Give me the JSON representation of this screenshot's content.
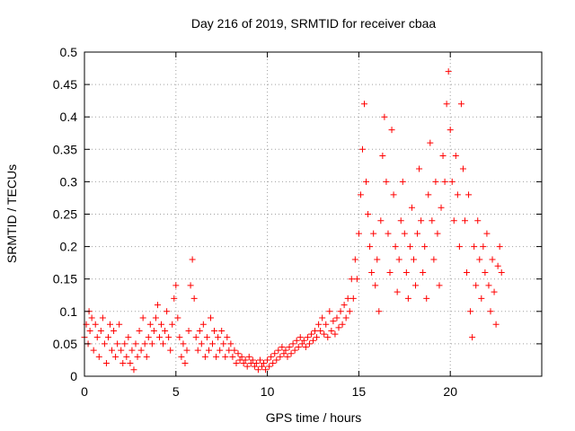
{
  "chart_data": {
    "type": "scatter",
    "title": "Day 216 of 2019, SRMTID for receiver cbaa",
    "xlabel": "GPS time / hours",
    "ylabel": "SRMTID / TECUs",
    "xlim": [
      0,
      25
    ],
    "ylim": [
      0,
      0.5
    ],
    "x_ticks": [
      0,
      5,
      10,
      15,
      20
    ],
    "x_tick_labels": [
      "0",
      "5",
      "10",
      "15",
      "20"
    ],
    "y_ticks": [
      0,
      0.05,
      0.1,
      0.15,
      0.2,
      0.25,
      0.3,
      0.35,
      0.4,
      0.45,
      0.5
    ],
    "y_tick_labels": [
      "0",
      "0.05",
      "0.1",
      "0.15",
      "0.2",
      "0.25",
      "0.3",
      "0.35",
      "0.4",
      "0.45",
      "0.5"
    ],
    "grid": true,
    "marker": "+",
    "marker_color": "#ff0000",
    "series": [
      {
        "name": "SRMTID",
        "points": [
          [
            0.0,
            0.06
          ],
          [
            0.1,
            0.08
          ],
          [
            0.2,
            0.05
          ],
          [
            0.25,
            0.1
          ],
          [
            0.3,
            0.07
          ],
          [
            0.4,
            0.09
          ],
          [
            0.5,
            0.04
          ],
          [
            0.6,
            0.08
          ],
          [
            0.7,
            0.06
          ],
          [
            0.8,
            0.03
          ],
          [
            0.9,
            0.07
          ],
          [
            1.0,
            0.09
          ],
          [
            1.1,
            0.05
          ],
          [
            1.2,
            0.02
          ],
          [
            1.3,
            0.06
          ],
          [
            1.4,
            0.08
          ],
          [
            1.5,
            0.04
          ],
          [
            1.6,
            0.07
          ],
          [
            1.7,
            0.03
          ],
          [
            1.8,
            0.05
          ],
          [
            1.9,
            0.08
          ],
          [
            2.0,
            0.04
          ],
          [
            2.1,
            0.02
          ],
          [
            2.2,
            0.05
          ],
          [
            2.3,
            0.03
          ],
          [
            2.4,
            0.06
          ],
          [
            2.5,
            0.02
          ],
          [
            2.6,
            0.04
          ],
          [
            2.7,
            0.01
          ],
          [
            2.8,
            0.05
          ],
          [
            2.9,
            0.03
          ],
          [
            3.0,
            0.07
          ],
          [
            3.1,
            0.04
          ],
          [
            3.2,
            0.09
          ],
          [
            3.3,
            0.05
          ],
          [
            3.4,
            0.03
          ],
          [
            3.5,
            0.06
          ],
          [
            3.6,
            0.08
          ],
          [
            3.7,
            0.05
          ],
          [
            3.8,
            0.07
          ],
          [
            3.9,
            0.09
          ],
          [
            4.0,
            0.11
          ],
          [
            4.1,
            0.06
          ],
          [
            4.2,
            0.08
          ],
          [
            4.3,
            0.05
          ],
          [
            4.4,
            0.07
          ],
          [
            4.5,
            0.1
          ],
          [
            4.6,
            0.06
          ],
          [
            4.7,
            0.04
          ],
          [
            4.8,
            0.08
          ],
          [
            4.9,
            0.12
          ],
          [
            5.0,
            0.14
          ],
          [
            5.1,
            0.09
          ],
          [
            5.2,
            0.06
          ],
          [
            5.3,
            0.03
          ],
          [
            5.4,
            0.05
          ],
          [
            5.5,
            0.02
          ],
          [
            5.6,
            0.04
          ],
          [
            5.7,
            0.07
          ],
          [
            5.8,
            0.14
          ],
          [
            5.9,
            0.18
          ],
          [
            6.0,
            0.12
          ],
          [
            6.1,
            0.06
          ],
          [
            6.2,
            0.04
          ],
          [
            6.3,
            0.07
          ],
          [
            6.4,
            0.05
          ],
          [
            6.5,
            0.08
          ],
          [
            6.6,
            0.03
          ],
          [
            6.7,
            0.06
          ],
          [
            6.8,
            0.04
          ],
          [
            6.9,
            0.09
          ],
          [
            7.0,
            0.05
          ],
          [
            7.1,
            0.07
          ],
          [
            7.2,
            0.03
          ],
          [
            7.3,
            0.06
          ],
          [
            7.4,
            0.04
          ],
          [
            7.5,
            0.07
          ],
          [
            7.6,
            0.05
          ],
          [
            7.7,
            0.03
          ],
          [
            7.8,
            0.06
          ],
          [
            7.9,
            0.04
          ],
          [
            8.0,
            0.05
          ],
          [
            8.1,
            0.03
          ],
          [
            8.2,
            0.04
          ],
          [
            8.3,
            0.02
          ],
          [
            8.4,
            0.035
          ],
          [
            8.5,
            0.025
          ],
          [
            8.6,
            0.03
          ],
          [
            8.7,
            0.02
          ],
          [
            8.8,
            0.025
          ],
          [
            8.9,
            0.015
          ],
          [
            9.0,
            0.03
          ],
          [
            9.1,
            0.02
          ],
          [
            9.2,
            0.025
          ],
          [
            9.3,
            0.015
          ],
          [
            9.4,
            0.02
          ],
          [
            9.5,
            0.01
          ],
          [
            9.6,
            0.025
          ],
          [
            9.7,
            0.015
          ],
          [
            9.8,
            0.02
          ],
          [
            9.9,
            0.01
          ],
          [
            10.0,
            0.025
          ],
          [
            10.1,
            0.015
          ],
          [
            10.2,
            0.03
          ],
          [
            10.3,
            0.02
          ],
          [
            10.4,
            0.035
          ],
          [
            10.5,
            0.025
          ],
          [
            10.6,
            0.04
          ],
          [
            10.7,
            0.03
          ],
          [
            10.8,
            0.045
          ],
          [
            10.9,
            0.035
          ],
          [
            11.0,
            0.04
          ],
          [
            11.1,
            0.03
          ],
          [
            11.2,
            0.045
          ],
          [
            11.3,
            0.035
          ],
          [
            11.4,
            0.05
          ],
          [
            11.5,
            0.04
          ],
          [
            11.6,
            0.055
          ],
          [
            11.7,
            0.045
          ],
          [
            11.8,
            0.06
          ],
          [
            11.9,
            0.05
          ],
          [
            12.0,
            0.055
          ],
          [
            12.1,
            0.045
          ],
          [
            12.2,
            0.06
          ],
          [
            12.3,
            0.05
          ],
          [
            12.4,
            0.065
          ],
          [
            12.5,
            0.055
          ],
          [
            12.6,
            0.07
          ],
          [
            12.7,
            0.06
          ],
          [
            12.8,
            0.08
          ],
          [
            12.9,
            0.07
          ],
          [
            13.0,
            0.09
          ],
          [
            13.1,
            0.065
          ],
          [
            13.2,
            0.08
          ],
          [
            13.3,
            0.06
          ],
          [
            13.4,
            0.1
          ],
          [
            13.5,
            0.07
          ],
          [
            13.6,
            0.085
          ],
          [
            13.7,
            0.065
          ],
          [
            13.8,
            0.09
          ],
          [
            13.9,
            0.075
          ],
          [
            14.0,
            0.1
          ],
          [
            14.1,
            0.08
          ],
          [
            14.2,
            0.11
          ],
          [
            14.3,
            0.09
          ],
          [
            14.4,
            0.12
          ],
          [
            14.5,
            0.1
          ],
          [
            14.6,
            0.15
          ],
          [
            14.7,
            0.12
          ],
          [
            14.8,
            0.18
          ],
          [
            14.9,
            0.15
          ],
          [
            15.0,
            0.22
          ],
          [
            15.1,
            0.28
          ],
          [
            15.2,
            0.35
          ],
          [
            15.3,
            0.42
          ],
          [
            15.4,
            0.3
          ],
          [
            15.5,
            0.25
          ],
          [
            15.6,
            0.2
          ],
          [
            15.7,
            0.16
          ],
          [
            15.8,
            0.22
          ],
          [
            15.9,
            0.14
          ],
          [
            16.0,
            0.18
          ],
          [
            16.1,
            0.1
          ],
          [
            16.2,
            0.24
          ],
          [
            16.3,
            0.34
          ],
          [
            16.4,
            0.4
          ],
          [
            16.5,
            0.3
          ],
          [
            16.6,
            0.22
          ],
          [
            16.7,
            0.16
          ],
          [
            16.8,
            0.38
          ],
          [
            16.9,
            0.28
          ],
          [
            17.0,
            0.2
          ],
          [
            17.1,
            0.13
          ],
          [
            17.2,
            0.18
          ],
          [
            17.3,
            0.24
          ],
          [
            17.4,
            0.3
          ],
          [
            17.5,
            0.22
          ],
          [
            17.6,
            0.16
          ],
          [
            17.7,
            0.12
          ],
          [
            17.8,
            0.2
          ],
          [
            17.9,
            0.26
          ],
          [
            18.0,
            0.18
          ],
          [
            18.1,
            0.14
          ],
          [
            18.2,
            0.22
          ],
          [
            18.3,
            0.32
          ],
          [
            18.4,
            0.24
          ],
          [
            18.5,
            0.16
          ],
          [
            18.6,
            0.2
          ],
          [
            18.7,
            0.12
          ],
          [
            18.8,
            0.28
          ],
          [
            18.9,
            0.36
          ],
          [
            19.0,
            0.24
          ],
          [
            19.1,
            0.18
          ],
          [
            19.2,
            0.3
          ],
          [
            19.3,
            0.22
          ],
          [
            19.4,
            0.14
          ],
          [
            19.5,
            0.26
          ],
          [
            19.6,
            0.34
          ],
          [
            19.7,
            0.3
          ],
          [
            19.8,
            0.42
          ],
          [
            19.9,
            0.47
          ],
          [
            20.0,
            0.38
          ],
          [
            20.1,
            0.3
          ],
          [
            20.2,
            0.24
          ],
          [
            20.3,
            0.34
          ],
          [
            20.4,
            0.28
          ],
          [
            20.5,
            0.2
          ],
          [
            20.6,
            0.42
          ],
          [
            20.7,
            0.32
          ],
          [
            20.8,
            0.24
          ],
          [
            20.9,
            0.16
          ],
          [
            21.0,
            0.28
          ],
          [
            21.1,
            0.1
          ],
          [
            21.2,
            0.06
          ],
          [
            21.3,
            0.2
          ],
          [
            21.4,
            0.14
          ],
          [
            21.5,
            0.24
          ],
          [
            21.6,
            0.18
          ],
          [
            21.7,
            0.12
          ],
          [
            21.8,
            0.2
          ],
          [
            21.9,
            0.16
          ],
          [
            22.0,
            0.22
          ],
          [
            22.1,
            0.14
          ],
          [
            22.2,
            0.1
          ],
          [
            22.3,
            0.18
          ],
          [
            22.4,
            0.13
          ],
          [
            22.5,
            0.08
          ],
          [
            22.6,
            0.17
          ],
          [
            22.7,
            0.2
          ],
          [
            22.8,
            0.16
          ]
        ]
      }
    ]
  }
}
